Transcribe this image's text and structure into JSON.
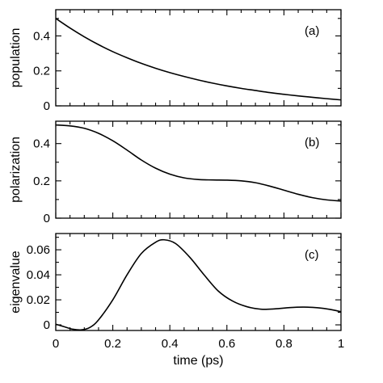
{
  "chart_data": [
    {
      "type": "line",
      "panel_label": "(a)",
      "ylabel": "population",
      "ylim": [
        0,
        0.55
      ],
      "yticks": [
        0,
        0.2,
        0.4
      ],
      "ytick_labels": [
        "0",
        "0.2",
        "0.4"
      ],
      "xlim": [
        0,
        1
      ],
      "x": [
        0,
        0.05,
        0.1,
        0.15,
        0.2,
        0.25,
        0.3,
        0.35,
        0.4,
        0.45,
        0.5,
        0.55,
        0.6,
        0.65,
        0.7,
        0.75,
        0.8,
        0.85,
        0.9,
        0.95,
        1.0
      ],
      "series": [
        {
          "values": [
            0.5,
            0.445,
            0.395,
            0.35,
            0.31,
            0.275,
            0.243,
            0.215,
            0.19,
            0.168,
            0.148,
            0.13,
            0.114,
            0.1,
            0.088,
            0.076,
            0.066,
            0.057,
            0.049,
            0.041,
            0.034
          ]
        }
      ]
    },
    {
      "type": "line",
      "panel_label": "(b)",
      "ylabel": "polarization",
      "ylim": [
        0,
        0.52
      ],
      "yticks": [
        0,
        0.2,
        0.4
      ],
      "ytick_labels": [
        "0",
        "0.2",
        "0.4"
      ],
      "xlim": [
        0,
        1
      ],
      "x": [
        0,
        0.05,
        0.1,
        0.15,
        0.2,
        0.25,
        0.3,
        0.35,
        0.4,
        0.45,
        0.5,
        0.55,
        0.6,
        0.65,
        0.7,
        0.75,
        0.8,
        0.85,
        0.9,
        0.95,
        1.0
      ],
      "series": [
        {
          "values": [
            0.5,
            0.495,
            0.482,
            0.455,
            0.415,
            0.365,
            0.312,
            0.268,
            0.236,
            0.216,
            0.207,
            0.205,
            0.204,
            0.2,
            0.19,
            0.172,
            0.15,
            0.128,
            0.11,
            0.098,
            0.092
          ]
        }
      ]
    },
    {
      "type": "line",
      "panel_label": "(c)",
      "ylabel": "eigenvalue",
      "ylim": [
        -0.0045,
        0.073
      ],
      "yticks": [
        0,
        0.02,
        0.04,
        0.06
      ],
      "ytick_labels": [
        "0",
        "0.02",
        "0.04",
        "0.06"
      ],
      "xlim": [
        0,
        1
      ],
      "xlabel": "time (ps)",
      "xticks": [
        0,
        0.2,
        0.4,
        0.6,
        0.8,
        1
      ],
      "xtick_labels": [
        "0",
        "0.2",
        "0.4",
        "0.6",
        "0.8",
        "1"
      ],
      "x": [
        0,
        0.03,
        0.06,
        0.09,
        0.12,
        0.15,
        0.2,
        0.25,
        0.3,
        0.35,
        0.38,
        0.42,
        0.47,
        0.52,
        0.57,
        0.62,
        0.67,
        0.72,
        0.77,
        0.82,
        0.87,
        0.92,
        0.96,
        1.0
      ],
      "series": [
        {
          "values": [
            0.0005,
            -0.0015,
            -0.0035,
            -0.004,
            -0.002,
            0.004,
            0.02,
            0.04,
            0.057,
            0.066,
            0.068,
            0.065,
            0.054,
            0.04,
            0.027,
            0.019,
            0.0145,
            0.0125,
            0.0128,
            0.0138,
            0.0142,
            0.0136,
            0.0124,
            0.0105
          ]
        }
      ]
    }
  ]
}
